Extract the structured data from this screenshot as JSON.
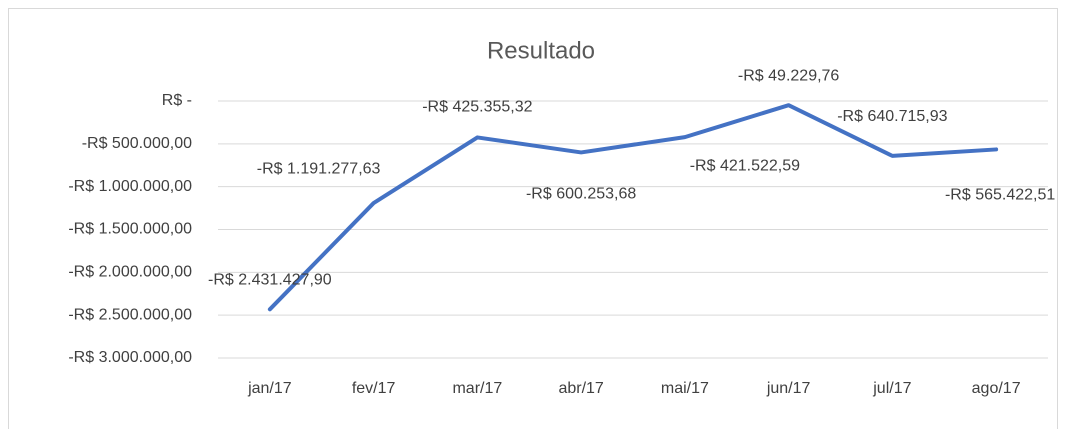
{
  "chart_data": {
    "type": "line",
    "title": "Resultado",
    "categories": [
      "jan/17",
      "fev/17",
      "mar/17",
      "abr/17",
      "mai/17",
      "jun/17",
      "jul/17",
      "ago/17"
    ],
    "series": [
      {
        "name": "Resultado",
        "color": "#4472c4",
        "values": [
          -2431427.9,
          -1191277.63,
          -425355.32,
          -600253.68,
          -421522.59,
          -49229.76,
          -640715.93,
          -565422.51
        ],
        "value_labels": [
          "-R$ 2.431.427,90",
          "-R$ 1.191.277,63",
          "-R$ 425.355,32",
          "-R$ 600.253,68",
          "-R$ 421.522,59",
          "-R$ 49.229,76",
          "-R$ 640.715,93",
          "-R$ 565.422,51"
        ]
      }
    ],
    "ylim": [
      -3000000,
      0
    ],
    "yticks": [
      {
        "value": 0,
        "label": "R$ -"
      },
      {
        "value": -500000,
        "label": "-R$ 500.000,00"
      },
      {
        "value": -1000000,
        "label": "-R$ 1.000.000,00"
      },
      {
        "value": -1500000,
        "label": "-R$ 1.500.000,00"
      },
      {
        "value": -2000000,
        "label": "-R$ 2.000.000,00"
      },
      {
        "value": -2500000,
        "label": "-R$ 2.500.000,00"
      },
      {
        "value": -3000000,
        "label": "-R$ 3.000.000,00"
      }
    ],
    "grid": true
  }
}
